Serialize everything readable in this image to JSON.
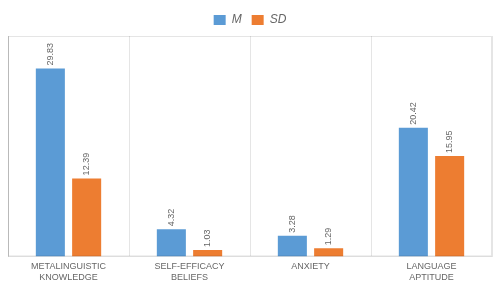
{
  "chart_data": {
    "type": "bar",
    "categories": [
      "METALINGUISTIC\nKNOWLEDGE",
      "SELF-EFFICACY\nBELIEFS",
      "ANXIETY",
      "LANGUAGE\nAPTITUDE"
    ],
    "series": [
      {
        "name": "M",
        "color": "#5B9BD5",
        "values": [
          29.83,
          4.32,
          3.28,
          20.42
        ]
      },
      {
        "name": "SD",
        "color": "#ED7D31",
        "values": [
          12.39,
          1.03,
          1.29,
          15.95
        ]
      }
    ],
    "ylim": [
      0,
      35
    ],
    "grid": false,
    "legend": "top",
    "data_labels": true,
    "tick_labels": "x"
  }
}
